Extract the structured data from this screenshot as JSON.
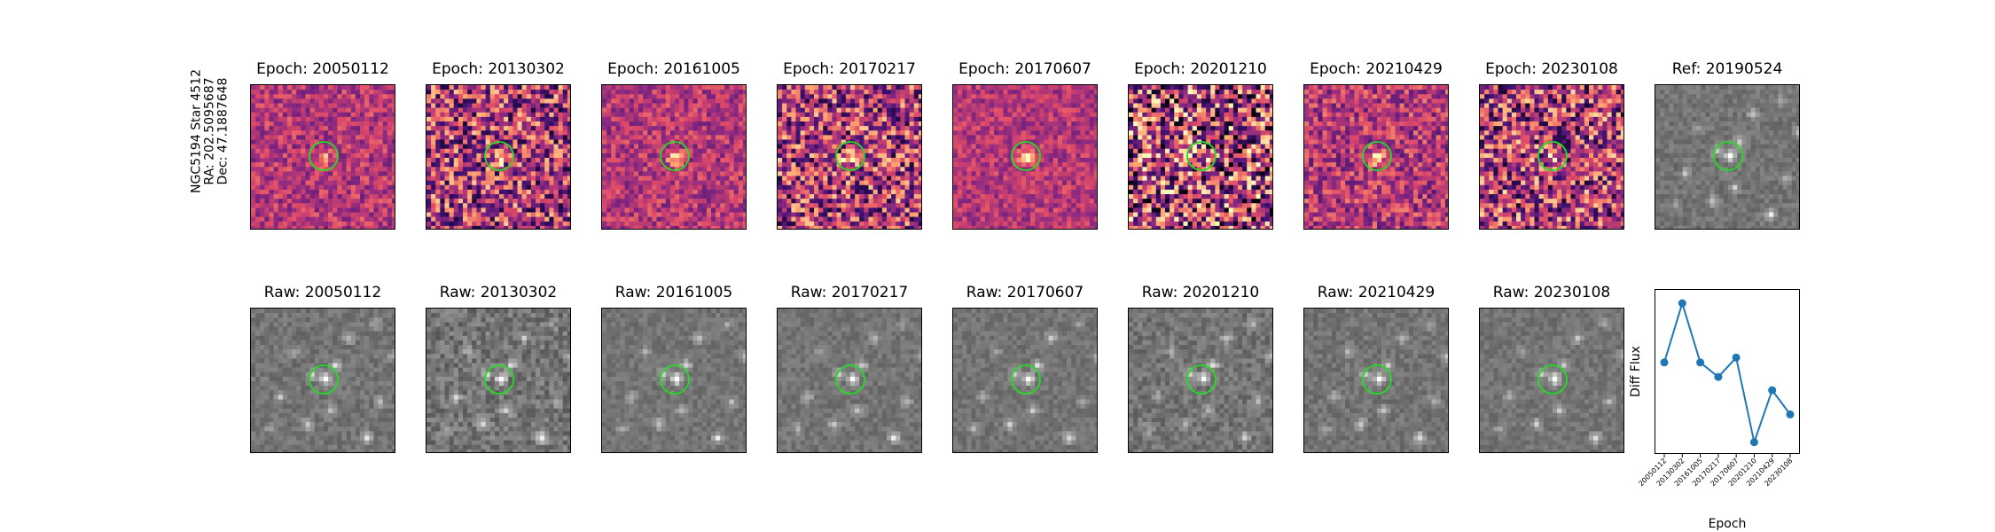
{
  "star_label": {
    "name": "NGC5194 Star 4512",
    "ra": "RA: 202.5095687",
    "dec": "Dec: 47.1887648"
  },
  "diff_panels": [
    {
      "title": "Epoch: 20050112",
      "colormap": "magma",
      "noise": 0.35,
      "source_strength": 0.35
    },
    {
      "title": "Epoch: 20130302",
      "colormap": "magma",
      "noise": 0.8,
      "source_strength": 0.5
    },
    {
      "title": "Epoch: 20161005",
      "colormap": "magma",
      "noise": 0.35,
      "source_strength": 0.45
    },
    {
      "title": "Epoch: 20170217",
      "colormap": "magma",
      "noise": 0.8,
      "source_strength": 0.7
    },
    {
      "title": "Epoch: 20170607",
      "colormap": "magma",
      "noise": 0.3,
      "source_strength": 0.6
    },
    {
      "title": "Epoch: 20201210",
      "colormap": "magma",
      "noise": 1.0,
      "source_strength": 0.2
    },
    {
      "title": "Epoch: 20210429",
      "colormap": "magma",
      "noise": 0.45,
      "source_strength": 0.55
    },
    {
      "title": "Epoch: 20230108",
      "colormap": "magma",
      "noise": 0.85,
      "source_strength": 0.3
    }
  ],
  "ref_panel": {
    "title": "Ref: 20190524",
    "colormap": "gray"
  },
  "raw_panels": [
    {
      "title": "Raw: 20050112",
      "noise": 0.5
    },
    {
      "title": "Raw: 20130302",
      "noise": 0.8
    },
    {
      "title": "Raw: 20161005",
      "noise": 0.45
    },
    {
      "title": "Raw: 20170217",
      "noise": 0.45
    },
    {
      "title": "Raw: 20170607",
      "noise": 0.45
    },
    {
      "title": "Raw: 20201210",
      "noise": 0.65
    },
    {
      "title": "Raw: 20210429",
      "noise": 0.5
    },
    {
      "title": "Raw: 20230108",
      "noise": 0.45
    }
  ],
  "colors": {
    "aperture_circle": "#22dd22",
    "line_color": "#1f77b4"
  },
  "chart_data": {
    "type": "line",
    "x": [
      "20050112",
      "20130302",
      "20161005",
      "20170217",
      "20170607",
      "20201210",
      "20210429",
      "20230108"
    ],
    "series": [
      {
        "values": [
          0.0,
          0.49,
          0.0,
          -0.12,
          0.04,
          -0.66,
          -0.23,
          -0.43
        ]
      }
    ],
    "xlabel": "Epoch",
    "ylabel": "Diff Flux",
    "ylim": [
      -0.75,
      0.6
    ],
    "grid": false,
    "yticks_visible": false
  }
}
